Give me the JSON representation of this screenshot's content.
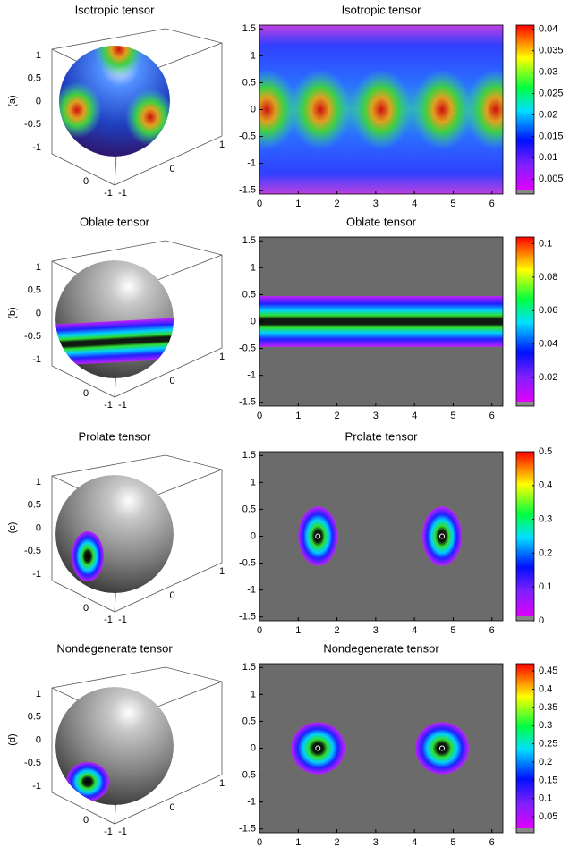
{
  "chart_data": [
    {
      "type": "heatmap",
      "label": "(a)",
      "title": "Isotropic tensor",
      "xlim": [
        0,
        6.283
      ],
      "ylim": [
        -1.571,
        1.571
      ],
      "xticks": [
        0,
        1,
        2,
        3,
        4,
        5,
        6
      ],
      "yticks": [
        -1.5,
        -1,
        -0.5,
        0,
        0.5,
        1,
        1.5
      ],
      "clim": [
        0.0015,
        0.041
      ],
      "cticks": [
        0.005,
        0.01,
        0.015,
        0.02,
        0.025,
        0.03,
        0.035,
        0.04
      ],
      "sphere": {
        "type": "surface3d",
        "title": "Isotropic tensor",
        "xlim": [
          -1,
          1
        ],
        "ylim": [
          -1,
          1
        ],
        "zlim": [
          -1,
          1
        ],
        "xticks": [
          -1,
          0
        ],
        "yticks": [
          -1,
          0,
          1
        ],
        "zticks": [
          -1,
          -0.5,
          0,
          0.5,
          1
        ]
      }
    },
    {
      "type": "heatmap",
      "label": "(b)",
      "title": "Oblate tensor",
      "xlim": [
        0,
        6.283
      ],
      "ylim": [
        -1.571,
        1.571
      ],
      "xticks": [
        0,
        1,
        2,
        3,
        4,
        5,
        6
      ],
      "yticks": [
        -1.5,
        -1,
        -0.5,
        0,
        0.5,
        1,
        1.5
      ],
      "clim": [
        0.003,
        0.104
      ],
      "cticks": [
        0.02,
        0.04,
        0.06,
        0.08,
        0.1
      ],
      "sphere": {
        "type": "surface3d",
        "title": "Oblate tensor",
        "xlim": [
          -1,
          1
        ],
        "ylim": [
          -1,
          1
        ],
        "zlim": [
          -1,
          1
        ],
        "xticks": [
          -1,
          0
        ],
        "yticks": [
          -1,
          0,
          1
        ],
        "zticks": [
          -1,
          -0.5,
          0,
          0.5,
          1
        ]
      }
    },
    {
      "type": "heatmap",
      "label": "(c)",
      "title": "Prolate tensor",
      "xlim": [
        0,
        6.283
      ],
      "ylim": [
        -1.571,
        1.571
      ],
      "xticks": [
        0,
        1,
        2,
        3,
        4,
        5,
        6
      ],
      "yticks": [
        -1.5,
        -1,
        -0.5,
        0,
        0.5,
        1,
        1.5
      ],
      "clim": [
        0,
        0.5
      ],
      "cticks": [
        0,
        0.1,
        0.2,
        0.3,
        0.4,
        0.5
      ],
      "sphere": {
        "type": "surface3d",
        "title": "Prolate tensor",
        "xlim": [
          -1,
          1
        ],
        "ylim": [
          -1,
          1
        ],
        "zlim": [
          -1,
          1
        ],
        "xticks": [
          -1,
          0
        ],
        "yticks": [
          -1,
          0,
          1
        ],
        "zticks": [
          -1,
          -0.5,
          0,
          0.5,
          1
        ]
      }
    },
    {
      "type": "heatmap",
      "label": "(d)",
      "title": "Nondegenerate tensor",
      "xlim": [
        0,
        6.283
      ],
      "ylim": [
        -1.571,
        1.571
      ],
      "xticks": [
        0,
        1,
        2,
        3,
        4,
        5,
        6
      ],
      "yticks": [
        -1.5,
        -1,
        -0.5,
        0,
        0.5,
        1,
        1.5
      ],
      "clim": [
        0.006,
        0.47
      ],
      "cticks": [
        0.05,
        0.1,
        0.15,
        0.2,
        0.25,
        0.3,
        0.35,
        0.4,
        0.45
      ],
      "sphere": {
        "type": "surface3d",
        "title": "Nondegenerate tensor",
        "xlim": [
          -1,
          1
        ],
        "ylim": [
          -1,
          1
        ],
        "zlim": [
          -1,
          1
        ],
        "xticks": [
          -1,
          0
        ],
        "yticks": [
          -1,
          0,
          1
        ],
        "zticks": [
          -1,
          -0.5,
          0,
          0.5,
          1
        ]
      }
    }
  ]
}
